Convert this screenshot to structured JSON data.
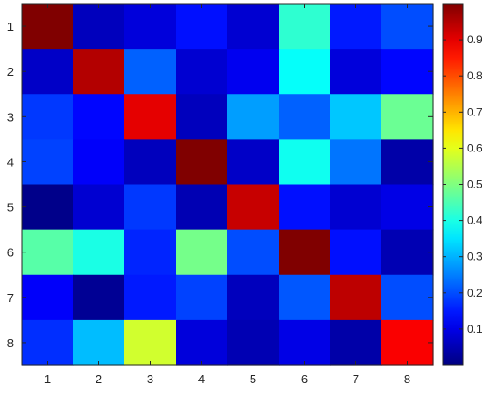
{
  "chart_data": {
    "type": "heatmap",
    "title": "",
    "xlabel": "",
    "ylabel": "",
    "x_ticks": [
      "1",
      "2",
      "3",
      "4",
      "5",
      "6",
      "7",
      "8"
    ],
    "y_ticks": [
      "1",
      "2",
      "3",
      "4",
      "5",
      "6",
      "7",
      "8"
    ],
    "colormap": "jet",
    "clim": [
      0.0,
      1.0
    ],
    "colorbar": {
      "placement": "right",
      "ticks": [
        0.1,
        0.2,
        0.3,
        0.4,
        0.5,
        0.6,
        0.7,
        0.8,
        0.9
      ],
      "tick_labels": [
        "0.1",
        "0.2",
        "0.3",
        "0.4",
        "0.5",
        "0.6",
        "0.7",
        "0.8",
        "0.9"
      ]
    },
    "values": [
      [
        1.0,
        0.06,
        0.09,
        0.14,
        0.08,
        0.42,
        0.15,
        0.2
      ],
      [
        0.07,
        0.95,
        0.22,
        0.08,
        0.11,
        0.38,
        0.09,
        0.13
      ],
      [
        0.18,
        0.13,
        0.9,
        0.06,
        0.28,
        0.22,
        0.32,
        0.48
      ],
      [
        0.19,
        0.12,
        0.06,
        1.0,
        0.07,
        0.39,
        0.24,
        0.04
      ],
      [
        0.01,
        0.08,
        0.18,
        0.05,
        0.93,
        0.14,
        0.08,
        0.1
      ],
      [
        0.46,
        0.4,
        0.16,
        0.49,
        0.2,
        1.0,
        0.14,
        0.05
      ],
      [
        0.12,
        0.02,
        0.15,
        0.19,
        0.06,
        0.21,
        0.94,
        0.2
      ],
      [
        0.17,
        0.31,
        0.58,
        0.09,
        0.05,
        0.1,
        0.04,
        0.88
      ]
    ]
  }
}
